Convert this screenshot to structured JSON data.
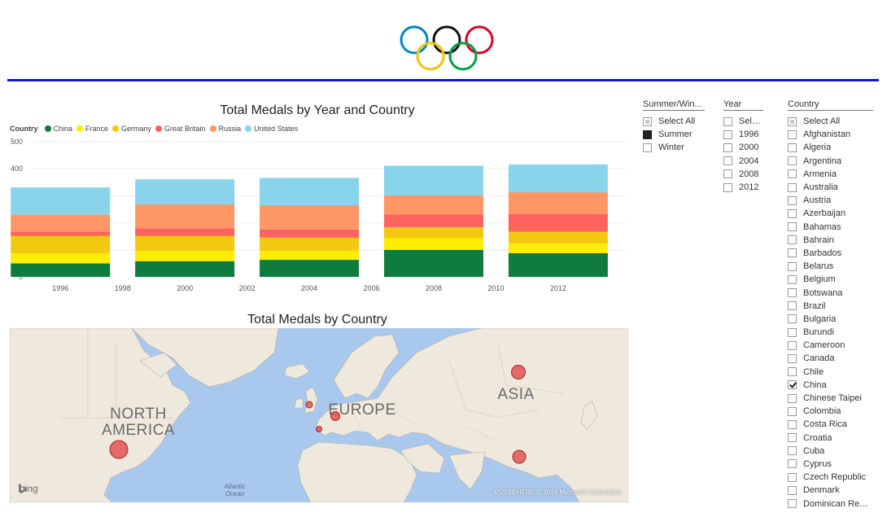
{
  "dashboard": {
    "logo": "olympic-rings",
    "accent_color": "#1515d0"
  },
  "chart_title": "Total Medals by Year and Country",
  "legend_title": "Country",
  "chart_data": {
    "type": "bar",
    "stacked": true,
    "title": "Total Medals by Year and Country",
    "categories": [
      "1996",
      "2000",
      "2004",
      "2008",
      "2012"
    ],
    "x_ticks": [
      "1996",
      "1998",
      "2000",
      "2002",
      "2004",
      "2006",
      "2008",
      "2010",
      "2012"
    ],
    "y_ticks": [
      "0",
      "100",
      "200",
      "300",
      "400",
      "500"
    ],
    "ylim": [
      0,
      500
    ],
    "grid": true,
    "legend_position": "top-left",
    "series": [
      {
        "name": "China",
        "color": "#0f7b3c",
        "values": [
          50,
          58,
          63,
          100,
          88
        ]
      },
      {
        "name": "France",
        "color": "#ffee00",
        "values": [
          37,
          38,
          33,
          43,
          35
        ]
      },
      {
        "name": "Germany",
        "color": "#f2c811",
        "values": [
          65,
          55,
          49,
          41,
          44
        ]
      },
      {
        "name": "Great Britain",
        "color": "#fd625e",
        "values": [
          15,
          28,
          30,
          47,
          65
        ]
      },
      {
        "name": "Russia",
        "color": "#fe9666",
        "values": [
          63,
          89,
          90,
          70,
          81
        ]
      },
      {
        "name": "United States",
        "color": "#8ad4eb",
        "values": [
          101,
          93,
          101,
          110,
          103
        ]
      }
    ]
  },
  "map": {
    "title": "Total Medals by Country",
    "labels": {
      "north_america": "NORTH\nAMERICA",
      "europe": "EUROPE",
      "asia": "ASIA",
      "ocean": "Atlantic\nOcean"
    },
    "attribution": "bing",
    "copyright": "© 2016 HERE   © 2016 Microsoft Corporation",
    "bubble_color": "#e05454"
  },
  "slicers": {
    "season": {
      "title": "Summer/Win...",
      "items": [
        {
          "label": "Select All",
          "state": "partial"
        },
        {
          "label": "Summer",
          "state": "filled"
        },
        {
          "label": "Winter",
          "state": "none"
        }
      ]
    },
    "year": {
      "title": "Year",
      "items": [
        {
          "label": "Select ...",
          "state": "none"
        },
        {
          "label": "1996",
          "state": "none"
        },
        {
          "label": "2000",
          "state": "none"
        },
        {
          "label": "2004",
          "state": "none"
        },
        {
          "label": "2008",
          "state": "none"
        },
        {
          "label": "2012",
          "state": "none"
        }
      ]
    },
    "country": {
      "title": "Country",
      "items": [
        {
          "label": "Select All",
          "state": "partial"
        },
        {
          "label": "Afghanistan",
          "state": "none"
        },
        {
          "label": "Algeria",
          "state": "none"
        },
        {
          "label": "Argentina",
          "state": "none"
        },
        {
          "label": "Armenia",
          "state": "none"
        },
        {
          "label": "Australia",
          "state": "none"
        },
        {
          "label": "Austria",
          "state": "none"
        },
        {
          "label": "Azerbaijan",
          "state": "none"
        },
        {
          "label": "Bahamas",
          "state": "none"
        },
        {
          "label": "Bahrain",
          "state": "none"
        },
        {
          "label": "Barbados",
          "state": "none"
        },
        {
          "label": "Belarus",
          "state": "none"
        },
        {
          "label": "Belgium",
          "state": "none"
        },
        {
          "label": "Botswana",
          "state": "none"
        },
        {
          "label": "Brazil",
          "state": "none"
        },
        {
          "label": "Bulgaria",
          "state": "none"
        },
        {
          "label": "Burundi",
          "state": "none"
        },
        {
          "label": "Cameroon",
          "state": "none"
        },
        {
          "label": "Canada",
          "state": "none"
        },
        {
          "label": "Chile",
          "state": "none"
        },
        {
          "label": "China",
          "state": "checked"
        },
        {
          "label": "Chinese Taipei",
          "state": "none"
        },
        {
          "label": "Colombia",
          "state": "none"
        },
        {
          "label": "Costa Rica",
          "state": "none"
        },
        {
          "label": "Croatia",
          "state": "none"
        },
        {
          "label": "Cuba",
          "state": "none"
        },
        {
          "label": "Cyprus",
          "state": "none"
        },
        {
          "label": "Czech Republic",
          "state": "none"
        },
        {
          "label": "Denmark",
          "state": "none"
        },
        {
          "label": "Dominican Repub...",
          "state": "none"
        }
      ]
    }
  }
}
